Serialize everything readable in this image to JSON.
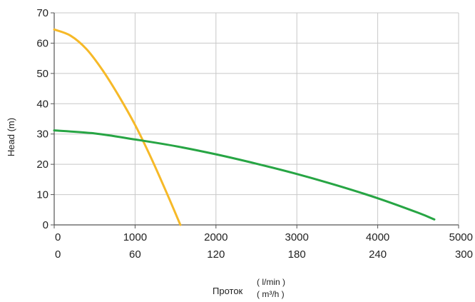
{
  "chart_data": {
    "type": "line",
    "ylabel": "Head (m)",
    "xlabel": "Проток",
    "xunits": [
      "( l/min )",
      "( m³/h )"
    ],
    "x_ticks_primary": [
      "0",
      "1000",
      "2000",
      "3000",
      "4000",
      "5000"
    ],
    "x_ticks_secondary": [
      "0",
      "60",
      "120",
      "180",
      "240",
      "300"
    ],
    "y_ticks": [
      "0",
      "10",
      "20",
      "30",
      "40",
      "50",
      "60",
      "70"
    ],
    "xlim": [
      0,
      5000
    ],
    "ylim": [
      0,
      70
    ],
    "grid": true,
    "colors": {
      "yellow": "#f6b928",
      "green": "#27a544",
      "grid": "#c8c8c8",
      "axis": "#555555"
    },
    "series": [
      {
        "color": "#f6b928",
        "x": [
          0,
          200,
          400,
          600,
          800,
          1000,
          1200,
          1400,
          1560
        ],
        "y": [
          64.5,
          62.5,
          58,
          51,
          42.5,
          33,
          22,
          10,
          0
        ]
      },
      {
        "color": "#27a544",
        "x": [
          0,
          500,
          1000,
          1500,
          2000,
          2500,
          3000,
          3500,
          4000,
          4500,
          4700
        ],
        "y": [
          31.2,
          30.2,
          28.2,
          26,
          23.3,
          20.2,
          16.8,
          13,
          8.8,
          4,
          1.8
        ]
      }
    ]
  }
}
